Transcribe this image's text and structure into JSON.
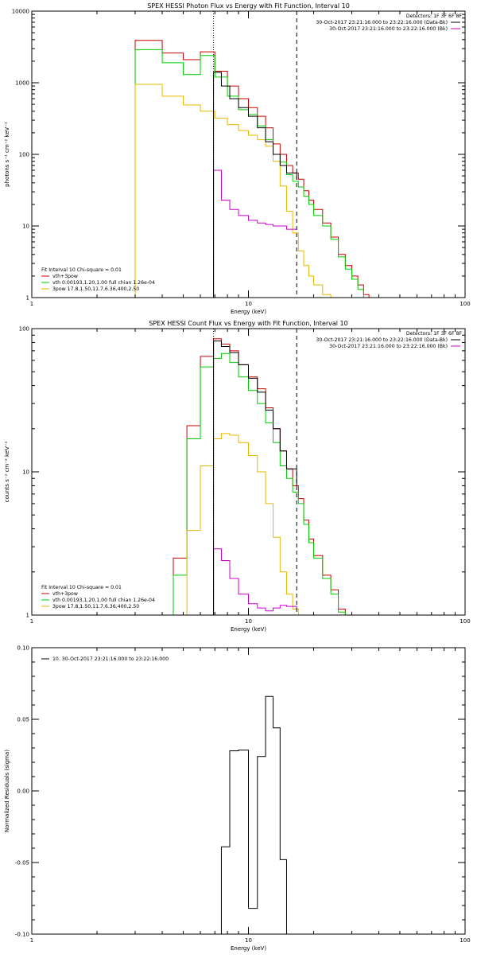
{
  "chart_data": [
    {
      "type": "line",
      "title": "SPEX HESSI Photon Flux vs Energy with Fit Function, Interval 10",
      "xlabel": "Energy (keV)",
      "ylabel": "photons s⁻¹ cm⁻² keV⁻¹",
      "xscale": "log",
      "yscale": "log",
      "xlim": [
        1,
        100
      ],
      "ylim": [
        1,
        10000
      ],
      "x_ticks": [
        {
          "v": 1,
          "label": "1"
        },
        {
          "v": 10,
          "label": "10"
        },
        {
          "v": 100,
          "label": "100"
        }
      ],
      "y_ticks": [
        {
          "v": 1,
          "label": "1"
        },
        {
          "v": 10,
          "label": "10"
        },
        {
          "v": 100,
          "label": "100"
        },
        {
          "v": 1000,
          "label": "1000"
        },
        {
          "v": 10000,
          "label": "10000"
        }
      ],
      "header_lines": [
        {
          "text": "Detectors: 1F 3F 6F 8F",
          "color": ""
        },
        {
          "text": "30-Oct-2017 23:21:16.000 to 23:22:16.000 (Data-Bk)",
          "color": "#000000"
        },
        {
          "text": "30-Oct-2017 23:21:16.000 to 23:22:16.000 (Bk)",
          "color": "#cc00cc"
        }
      ],
      "legend_lines": [
        {
          "text": "Fit Interval 10   Chi-square = 0.01",
          "color": ""
        },
        {
          "text": "vth+3pow",
          "color": "#cc0000"
        },
        {
          "text": "vth 0.00193,1.20,1.00  full chian 1.26e-04",
          "color": "#00cc00"
        },
        {
          "text": "3pow 17.8,1.50,11.7,6.36,400,2.50",
          "color": "#e6b800"
        }
      ],
      "vlines": [
        {
          "x": 6.9,
          "style": "dotted"
        },
        {
          "x": 16.7,
          "style": "dashed"
        }
      ],
      "series": [
        {
          "name": "vth+3pow",
          "color": "#cc0000",
          "edges": [
            3,
            4,
            5,
            6,
            7,
            8,
            9,
            10,
            11,
            12,
            13,
            14,
            15,
            16,
            17,
            18,
            19,
            20,
            22,
            24,
            26,
            28,
            30,
            32,
            34,
            36
          ],
          "values": [
            3900,
            2600,
            2100,
            2700,
            1450,
            900,
            600,
            450,
            340,
            235,
            140,
            100,
            70,
            55,
            45,
            31,
            23,
            17,
            11,
            7,
            4,
            2.8,
            2,
            1.5,
            1.1
          ]
        },
        {
          "name": "vth",
          "color": "#00cc00",
          "edges": [
            3,
            4,
            5,
            6,
            7,
            8,
            9,
            10,
            11,
            12,
            13,
            14,
            15,
            16,
            17,
            18,
            19,
            20,
            22,
            24,
            26,
            28,
            30,
            32,
            34,
            36
          ],
          "values": [
            2900,
            1900,
            1300,
            2400,
            1200,
            650,
            420,
            360,
            250,
            160,
            100,
            78,
            52,
            42,
            35,
            26,
            20,
            14,
            10,
            6.5,
            3.7,
            2.5,
            1.8,
            1.3,
            1.0
          ]
        },
        {
          "name": "3pow",
          "color": "#e6b800",
          "edges": [
            3,
            4,
            5,
            6,
            7,
            8,
            9,
            10,
            11,
            12,
            13,
            14,
            15,
            16,
            17,
            18,
            19,
            20,
            22,
            24,
            26
          ],
          "values": [
            950,
            650,
            490,
            400,
            320,
            260,
            215,
            185,
            160,
            130,
            80,
            36,
            16,
            8,
            4.5,
            2.8,
            2,
            1.5,
            1.1,
            1.0
          ]
        },
        {
          "name": "",
          "color": "#cc00cc",
          "edges": [
            6.9,
            7.5,
            8.2,
            9,
            10,
            11,
            12,
            13,
            14,
            15,
            16.7
          ],
          "values": [
            60,
            23,
            17,
            14,
            12,
            11,
            10.5,
            10,
            10,
            9,
            9
          ]
        },
        {
          "name": "",
          "color": "#000000",
          "edges": [
            6.9,
            7.5,
            8.2,
            9,
            10,
            11,
            12,
            13,
            14,
            15,
            16.7
          ],
          "values": [
            1400,
            900,
            600,
            450,
            340,
            235,
            150,
            100,
            70,
            55,
            45
          ]
        }
      ]
    },
    {
      "type": "line",
      "title": "SPEX HESSI Count Flux vs Energy with Fit Function, Interval 10",
      "xlabel": "Energy (keV)",
      "ylabel": "counts s⁻¹ cm⁻² keV⁻¹",
      "xscale": "log",
      "yscale": "log",
      "xlim": [
        1,
        100
      ],
      "ylim": [
        1,
        100
      ],
      "x_ticks": [
        {
          "v": 1,
          "label": "1"
        },
        {
          "v": 10,
          "label": "10"
        },
        {
          "v": 100,
          "label": "100"
        }
      ],
      "y_ticks": [
        {
          "v": 1,
          "label": "1"
        },
        {
          "v": 10,
          "label": "10"
        },
        {
          "v": 100,
          "label": "100"
        }
      ],
      "header_lines": [
        {
          "text": "Detectors: 1F 3F 6F 8F",
          "color": ""
        },
        {
          "text": "30-Oct-2017 23:21:16.000 to 23:22:16.000 (Data-Bk)",
          "color": "#000000"
        },
        {
          "text": "30-Oct-2017 23:21:16.000 to 23:22:16.000 (Bk)",
          "color": "#cc00cc"
        }
      ],
      "legend_lines": [
        {
          "text": "Fit Interval 10   Chi-square = 0.01",
          "color": ""
        },
        {
          "text": "vth+3pow",
          "color": "#cc0000"
        },
        {
          "text": "vth 0.00193,1.20,1.00  full chian 1.26e-04",
          "color": "#00cc00"
        },
        {
          "text": "3pow 17.8,1.50,11.7,6.36,400,2.50",
          "color": "#e6b800"
        }
      ],
      "vlines": [
        {
          "x": 6.9,
          "style": "dotted"
        },
        {
          "x": 16.7,
          "style": "dashed"
        }
      ],
      "series": [
        {
          "name": "vth+3pow",
          "color": "#cc0000",
          "edges": [
            4.5,
            5.2,
            6,
            6.9,
            7.5,
            8.2,
            9,
            10,
            11,
            12,
            13,
            14,
            15,
            16,
            17,
            18,
            19,
            20,
            22,
            24,
            26,
            28
          ],
          "values": [
            2.5,
            21,
            64,
            85,
            78,
            70,
            56,
            46,
            38,
            28,
            20,
            14,
            10.5,
            8,
            6.5,
            4.6,
            3.4,
            2.6,
            1.9,
            1.5,
            1.1
          ]
        },
        {
          "name": "vth",
          "color": "#00cc00",
          "edges": [
            4.5,
            5.2,
            6,
            6.9,
            7.5,
            8.2,
            9,
            10,
            11,
            12,
            13,
            14,
            15,
            16,
            17,
            18,
            19,
            20,
            22,
            24,
            26,
            28
          ],
          "values": [
            1.9,
            17,
            54,
            62,
            67,
            58,
            46,
            37,
            30,
            22,
            16,
            11,
            9,
            7.2,
            6,
            4.3,
            3.2,
            2.5,
            1.8,
            1.4,
            1.05
          ]
        },
        {
          "name": "3pow",
          "color": "#e6b800",
          "edges": [
            4.5,
            5.2,
            6,
            6.9,
            7.5,
            8.2,
            9,
            10,
            11,
            12,
            13,
            14,
            15,
            16,
            17,
            18
          ],
          "values": [
            1,
            3.9,
            11,
            17,
            18.5,
            18,
            16,
            13,
            10,
            6,
            3.5,
            2,
            1.4,
            1.1,
            1.0
          ]
        },
        {
          "name": "",
          "color": "#cc00cc",
          "edges": [
            6.9,
            7.5,
            8.2,
            9,
            10,
            11,
            12,
            13,
            14,
            15,
            16.7
          ],
          "values": [
            2.9,
            2.4,
            1.8,
            1.4,
            1.2,
            1.12,
            1.07,
            1.12,
            1.17,
            1.15,
            1.1
          ]
        },
        {
          "name": "",
          "color": "#000000",
          "edges": [
            6.9,
            7.5,
            8.2,
            9,
            10,
            11,
            12,
            13,
            14,
            15,
            16.7
          ],
          "values": [
            82,
            75,
            68,
            56,
            45,
            36,
            27,
            20,
            14,
            10.5,
            8
          ]
        }
      ]
    },
    {
      "type": "line",
      "title": "",
      "xlabel": "Energy (keV)",
      "ylabel": "Normalized Residuals (sigma)",
      "xscale": "log",
      "yscale": "linear",
      "xlim": [
        1,
        100
      ],
      "ylim": [
        -0.1,
        0.1
      ],
      "x_ticks": [
        {
          "v": 1,
          "label": "1"
        },
        {
          "v": 10,
          "label": "10"
        },
        {
          "v": 100,
          "label": "100"
        }
      ],
      "y_ticks": [
        {
          "v": -0.1,
          "label": "-0.10"
        },
        {
          "v": -0.05,
          "label": "-0.05"
        },
        {
          "v": 0,
          "label": "0.00"
        },
        {
          "v": 0.05,
          "label": "0.05"
        },
        {
          "v": 0.1,
          "label": "0.10"
        }
      ],
      "header_lines": [],
      "legend_lines": [
        {
          "text": "10. 30-Oct-2017 23:21:16.000 to 23:22:16.000",
          "color": "#000000"
        }
      ],
      "vlines": [],
      "series": [
        {
          "name": "10. 30-Oct-2017 23:21:16.000 to 23:22:16.000",
          "color": "#000000",
          "edges": [
            6.9,
            7.5,
            8.2,
            9,
            10,
            11,
            12,
            13,
            14,
            15,
            16.7
          ],
          "values": [
            -0.1,
            -0.039,
            0.028,
            0.0285,
            -0.082,
            0.024,
            0.066,
            0.044,
            -0.048,
            -0.1
          ]
        }
      ]
    }
  ]
}
